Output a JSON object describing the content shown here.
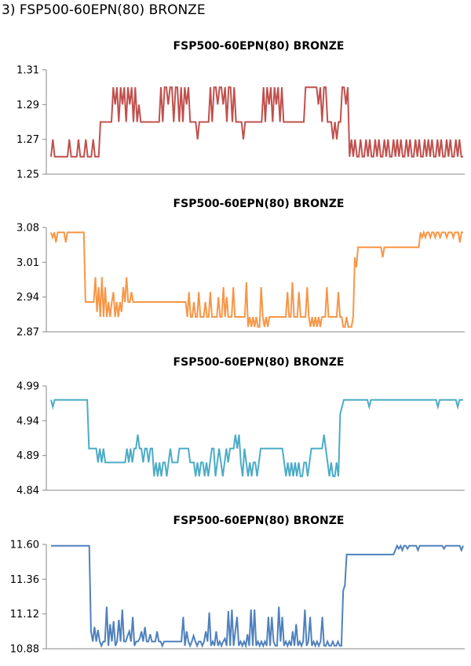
{
  "heading": "3) FSP500-60EPN(80) BRONZE",
  "chart_data": [
    {
      "type": "line",
      "title": "FSP500-60EPN(80) BRONZE",
      "color": "#C0504D",
      "ylim": [
        1.25,
        1.31
      ],
      "yticks": [
        "1.25",
        "1.27",
        "1.29",
        "1.31"
      ],
      "grid": false,
      "series": [
        {
          "values": [
            1.26,
            1.27,
            1.26,
            1.26,
            1.26,
            1.26,
            1.26,
            1.26,
            1.26,
            1.26,
            1.27,
            1.26,
            1.26,
            1.26,
            1.26,
            1.27,
            1.26,
            1.26,
            1.26,
            1.27,
            1.26,
            1.26,
            1.26,
            1.27,
            1.26,
            1.26,
            1.26,
            1.28,
            1.28,
            1.28,
            1.28,
            1.28,
            1.28,
            1.28,
            1.3,
            1.29,
            1.3,
            1.28,
            1.3,
            1.29,
            1.3,
            1.28,
            1.3,
            1.29,
            1.3,
            1.28,
            1.3,
            1.28,
            1.29,
            1.28,
            1.28,
            1.28,
            1.28,
            1.28,
            1.28,
            1.28,
            1.28,
            1.28,
            1.28,
            1.28,
            1.3,
            1.28,
            1.3,
            1.3,
            1.29,
            1.3,
            1.3,
            1.28,
            1.3,
            1.3,
            1.28,
            1.3,
            1.28,
            1.3,
            1.29,
            1.3,
            1.28,
            1.28,
            1.28,
            1.28,
            1.27,
            1.28,
            1.28,
            1.28,
            1.28,
            1.28,
            1.28,
            1.3,
            1.28,
            1.3,
            1.3,
            1.29,
            1.3,
            1.3,
            1.29,
            1.3,
            1.28,
            1.3,
            1.3,
            1.28,
            1.3,
            1.28,
            1.28,
            1.28,
            1.28,
            1.27,
            1.28,
            1.28,
            1.28,
            1.28,
            1.28,
            1.28,
            1.28,
            1.28,
            1.28,
            1.28,
            1.3,
            1.28,
            1.3,
            1.29,
            1.3,
            1.28,
            1.3,
            1.29,
            1.3,
            1.28,
            1.3,
            1.28,
            1.28,
            1.28,
            1.28,
            1.28,
            1.28,
            1.28,
            1.28,
            1.28,
            1.28,
            1.28,
            1.28,
            1.3,
            1.3,
            1.3,
            1.3,
            1.3,
            1.3,
            1.3,
            1.29,
            1.3,
            1.28,
            1.3,
            1.3,
            1.28,
            1.28,
            1.28,
            1.27,
            1.28,
            1.27,
            1.28,
            1.28,
            1.3,
            1.3,
            1.29,
            1.3,
            1.26,
            1.27,
            1.26,
            1.27,
            1.26,
            1.26,
            1.27,
            1.26,
            1.26,
            1.27,
            1.26,
            1.27,
            1.26,
            1.26,
            1.27,
            1.26,
            1.27,
            1.26,
            1.26,
            1.27,
            1.26,
            1.27,
            1.26,
            1.26,
            1.27,
            1.26,
            1.27,
            1.26,
            1.27,
            1.26,
            1.26,
            1.27,
            1.26,
            1.27,
            1.26,
            1.26,
            1.27,
            1.26,
            1.27,
            1.26,
            1.26,
            1.27,
            1.26,
            1.27,
            1.26,
            1.27,
            1.26,
            1.26,
            1.27,
            1.26,
            1.27,
            1.26,
            1.26,
            1.27,
            1.26,
            1.27,
            1.26,
            1.26,
            1.27,
            1.26,
            1.27,
            1.26,
            1.26
          ]
        }
      ]
    },
    {
      "type": "line",
      "title": "FSP500-60EPN(80) BRONZE",
      "color": "#F79646",
      "ylim": [
        2.87,
        3.08
      ],
      "yticks": [
        "2.87",
        "2.94",
        "3.01",
        "3.08"
      ],
      "grid": false,
      "series": [
        {
          "values": [
            3.07,
            3.06,
            3.07,
            3.05,
            3.07,
            3.07,
            3.07,
            3.07,
            3.07,
            3.05,
            3.07,
            3.07,
            3.07,
            3.07,
            3.07,
            3.07,
            3.07,
            3.07,
            3.07,
            3.07,
            3.07,
            2.93,
            2.93,
            2.93,
            2.93,
            2.93,
            2.93,
            2.98,
            2.91,
            2.96,
            2.9,
            2.98,
            2.9,
            2.96,
            2.9,
            2.93,
            2.9,
            2.93,
            2.95,
            2.9,
            2.93,
            2.9,
            2.93,
            2.91,
            2.96,
            2.93,
            2.98,
            2.93,
            2.93,
            2.95,
            2.93,
            2.93,
            2.93,
            2.93,
            2.93,
            2.93,
            2.93,
            2.93,
            2.93,
            2.93,
            2.93,
            2.93,
            2.93,
            2.93,
            2.93,
            2.93,
            2.93,
            2.93,
            2.93,
            2.93,
            2.93,
            2.93,
            2.93,
            2.93,
            2.93,
            2.93,
            2.93,
            2.93,
            2.93,
            2.93,
            2.93,
            2.93,
            2.93,
            2.9,
            2.95,
            2.9,
            2.9,
            2.93,
            2.9,
            2.9,
            2.95,
            2.9,
            2.9,
            2.9,
            2.93,
            2.9,
            2.9,
            2.95,
            2.9,
            2.9,
            2.9,
            2.9,
            2.94,
            2.9,
            2.9,
            2.96,
            2.9,
            2.94,
            2.9,
            2.9,
            2.9,
            2.96,
            2.9,
            2.9,
            2.9,
            2.9,
            2.9,
            2.9,
            2.9,
            2.97,
            2.88,
            2.9,
            2.88,
            2.9,
            2.88,
            2.9,
            2.88,
            2.88,
            2.96,
            2.9,
            2.88,
            2.9,
            2.88,
            2.9,
            2.9,
            2.9,
            2.9,
            2.9,
            2.9,
            2.9,
            2.9,
            2.9,
            2.9,
            2.9,
            2.95,
            2.9,
            2.9,
            2.97,
            2.9,
            2.9,
            2.9,
            2.95,
            2.9,
            2.9,
            2.9,
            2.9,
            2.96,
            2.9,
            2.88,
            2.9,
            2.88,
            2.9,
            2.88,
            2.9,
            2.88,
            2.9,
            2.9,
            2.9,
            2.96,
            2.9,
            2.9,
            2.9,
            2.9,
            2.9,
            2.9,
            2.95,
            2.9,
            2.9,
            2.88,
            2.88,
            2.9,
            2.88,
            2.88,
            2.88,
            2.9,
            3.02,
            3.0,
            3.04,
            3.04,
            3.04,
            3.04,
            3.04,
            3.04,
            3.04,
            3.04,
            3.04,
            3.04,
            3.04,
            3.04,
            3.04,
            3.04,
            3.04,
            3.02,
            3.04,
            3.04,
            3.04,
            3.04,
            3.04,
            3.04,
            3.04,
            3.04,
            3.04,
            3.04,
            3.04,
            3.04,
            3.04,
            3.04,
            3.04,
            3.04,
            3.04,
            3.04,
            3.04,
            3.04,
            3.04,
            3.04,
            3.07,
            3.06,
            3.07,
            3.06,
            3.07,
            3.07,
            3.06,
            3.07,
            3.07,
            3.06,
            3.07,
            3.07,
            3.06,
            3.07,
            3.07,
            3.07,
            3.06,
            3.07,
            3.07,
            3.07,
            3.06,
            3.07,
            3.07,
            3.07,
            3.05,
            3.07,
            3.07
          ]
        }
      ]
    },
    {
      "type": "line",
      "title": "FSP500-60EPN(80) BRONZE",
      "color": "#4BACC6",
      "ylim": [
        4.84,
        4.99
      ],
      "yticks": [
        "4.84",
        "4.89",
        "4.94",
        "4.99"
      ],
      "grid": false,
      "series": [
        {
          "values": [
            4.97,
            4.96,
            4.97,
            4.97,
            4.97,
            4.97,
            4.97,
            4.97,
            4.97,
            4.97,
            4.97,
            4.97,
            4.97,
            4.97,
            4.97,
            4.97,
            4.97,
            4.97,
            4.97,
            4.97,
            4.97,
            4.9,
            4.9,
            4.9,
            4.9,
            4.9,
            4.88,
            4.9,
            4.88,
            4.9,
            4.88,
            4.88,
            4.88,
            4.88,
            4.88,
            4.88,
            4.88,
            4.88,
            4.88,
            4.88,
            4.88,
            4.88,
            4.9,
            4.88,
            4.9,
            4.88,
            4.9,
            4.9,
            4.92,
            4.9,
            4.9,
            4.88,
            4.9,
            4.9,
            4.88,
            4.9,
            4.9,
            4.86,
            4.88,
            4.86,
            4.88,
            4.86,
            4.88,
            4.88,
            4.86,
            4.88,
            4.9,
            4.88,
            4.88,
            4.88,
            4.88,
            4.9,
            4.9,
            4.9,
            4.9,
            4.9,
            4.9,
            4.88,
            4.88,
            4.88,
            4.86,
            4.88,
            4.86,
            4.88,
            4.88,
            4.86,
            4.88,
            4.86,
            4.88,
            4.9,
            4.9,
            4.86,
            4.88,
            4.9,
            4.88,
            4.86,
            4.88,
            4.9,
            4.88,
            4.9,
            4.9,
            4.9,
            4.92,
            4.9,
            4.92,
            4.88,
            4.86,
            4.9,
            4.88,
            4.86,
            4.88,
            4.86,
            4.88,
            4.88,
            4.86,
            4.88,
            4.9,
            4.9,
            4.9,
            4.9,
            4.9,
            4.9,
            4.9,
            4.9,
            4.9,
            4.9,
            4.9,
            4.9,
            4.9,
            4.88,
            4.86,
            4.88,
            4.86,
            4.88,
            4.86,
            4.88,
            4.86,
            4.88,
            4.86,
            4.86,
            4.88,
            4.88,
            4.86,
            4.88,
            4.9,
            4.9,
            4.9,
            4.9,
            4.9,
            4.9,
            4.9,
            4.92,
            4.9,
            4.88,
            4.86,
            4.88,
            4.86,
            4.86,
            4.88,
            4.86,
            4.95,
            4.96,
            4.97,
            4.97,
            4.97,
            4.97,
            4.97,
            4.97,
            4.97,
            4.97,
            4.97,
            4.97,
            4.97,
            4.97,
            4.97,
            4.97,
            4.96,
            4.97,
            4.97,
            4.97,
            4.97,
            4.97,
            4.97,
            4.97,
            4.97,
            4.97,
            4.97,
            4.97,
            4.97,
            4.97,
            4.97,
            4.97,
            4.97,
            4.97,
            4.97,
            4.97,
            4.97,
            4.97,
            4.97,
            4.97,
            4.97,
            4.97,
            4.97,
            4.97,
            4.97,
            4.97,
            4.97,
            4.97,
            4.97,
            4.97,
            4.97,
            4.97,
            4.97,
            4.97,
            4.96,
            4.97,
            4.97,
            4.97,
            4.97,
            4.97,
            4.97,
            4.97,
            4.97,
            4.97,
            4.97,
            4.96,
            4.97,
            4.97,
            4.97
          ]
        }
      ]
    },
    {
      "type": "line",
      "title": "FSP500-60EPN(80) BRONZE",
      "color": "#4F81BD",
      "ylim": [
        10.88,
        11.6
      ],
      "yticks": [
        "10.88",
        "11.12",
        "11.36",
        "11.60"
      ],
      "grid": false,
      "series": [
        {
          "values": [
            11.59,
            11.59,
            11.59,
            11.59,
            11.59,
            11.59,
            11.59,
            11.59,
            11.59,
            11.59,
            11.59,
            11.59,
            11.59,
            11.59,
            11.59,
            11.59,
            11.59,
            11.59,
            11.59,
            11.59,
            11.59,
            11.59,
            11.59,
            11.0,
            10.93,
            11.03,
            10.93,
            11.01,
            10.93,
            10.9,
            10.93,
            10.93,
            11.17,
            10.9,
            11.05,
            10.93,
            11.07,
            10.9,
            10.93,
            11.08,
            10.93,
            11.15,
            10.93,
            10.93,
            10.97,
            11.0,
            10.93,
            11.1,
            10.9,
            10.93,
            10.93,
            10.95,
            11.0,
            10.93,
            11.03,
            10.93,
            10.93,
            10.98,
            10.93,
            10.93,
            10.93,
            11.0,
            10.93,
            10.93,
            10.9,
            10.93,
            10.93,
            10.93,
            10.93,
            10.93,
            10.93,
            10.93,
            10.93,
            10.93,
            10.93,
            10.93,
            11.1,
            10.9,
            11.0,
            10.93,
            10.9,
            10.93,
            10.97,
            10.93,
            10.9,
            10.93,
            10.93,
            10.9,
            10.93,
            11.0,
            10.93,
            11.13,
            10.9,
            10.93,
            10.9,
            11.0,
            10.9,
            10.93,
            10.9,
            10.93,
            10.95,
            10.9,
            11.14,
            10.9,
            11.15,
            10.9,
            11.0,
            11.1,
            10.9,
            10.93,
            10.9,
            10.93,
            10.9,
            10.98,
            10.9,
            11.15,
            10.9,
            11.15,
            10.9,
            10.93,
            10.9,
            10.93,
            10.9,
            10.93,
            10.9,
            11.1,
            10.9,
            11.1,
            10.93,
            10.9,
            10.9,
            11.17,
            10.93,
            11.1,
            10.9,
            10.93,
            10.9,
            10.93,
            10.9,
            11.0,
            10.9,
            11.05,
            10.9,
            10.93,
            10.9,
            10.93,
            11.15,
            10.9,
            10.93,
            11.1,
            10.9,
            10.93,
            10.9,
            10.93,
            10.9,
            10.93,
            11.1,
            10.9,
            10.9,
            10.93,
            10.9,
            10.9,
            10.93,
            10.9,
            10.9,
            10.93,
            10.9,
            10.9,
            11.28,
            11.32,
            11.53,
            11.53,
            11.53,
            11.53,
            11.53,
            11.53,
            11.53,
            11.53,
            11.53,
            11.53,
            11.53,
            11.53,
            11.53,
            11.53,
            11.53,
            11.53,
            11.53,
            11.53,
            11.53,
            11.53,
            11.53,
            11.53,
            11.53,
            11.53,
            11.53,
            11.53,
            11.53,
            11.53,
            11.56,
            11.59,
            11.57,
            11.59,
            11.56,
            11.59,
            11.59,
            11.57,
            11.59,
            11.59,
            11.59,
            11.59,
            11.59,
            11.56,
            11.59,
            11.59,
            11.59,
            11.59,
            11.59,
            11.59,
            11.59,
            11.59,
            11.59,
            11.59,
            11.59,
            11.59,
            11.59,
            11.59,
            11.57,
            11.59,
            11.59,
            11.59,
            11.59,
            11.59,
            11.59,
            11.59,
            11.59,
            11.59,
            11.56,
            11.59
          ]
        }
      ]
    }
  ]
}
